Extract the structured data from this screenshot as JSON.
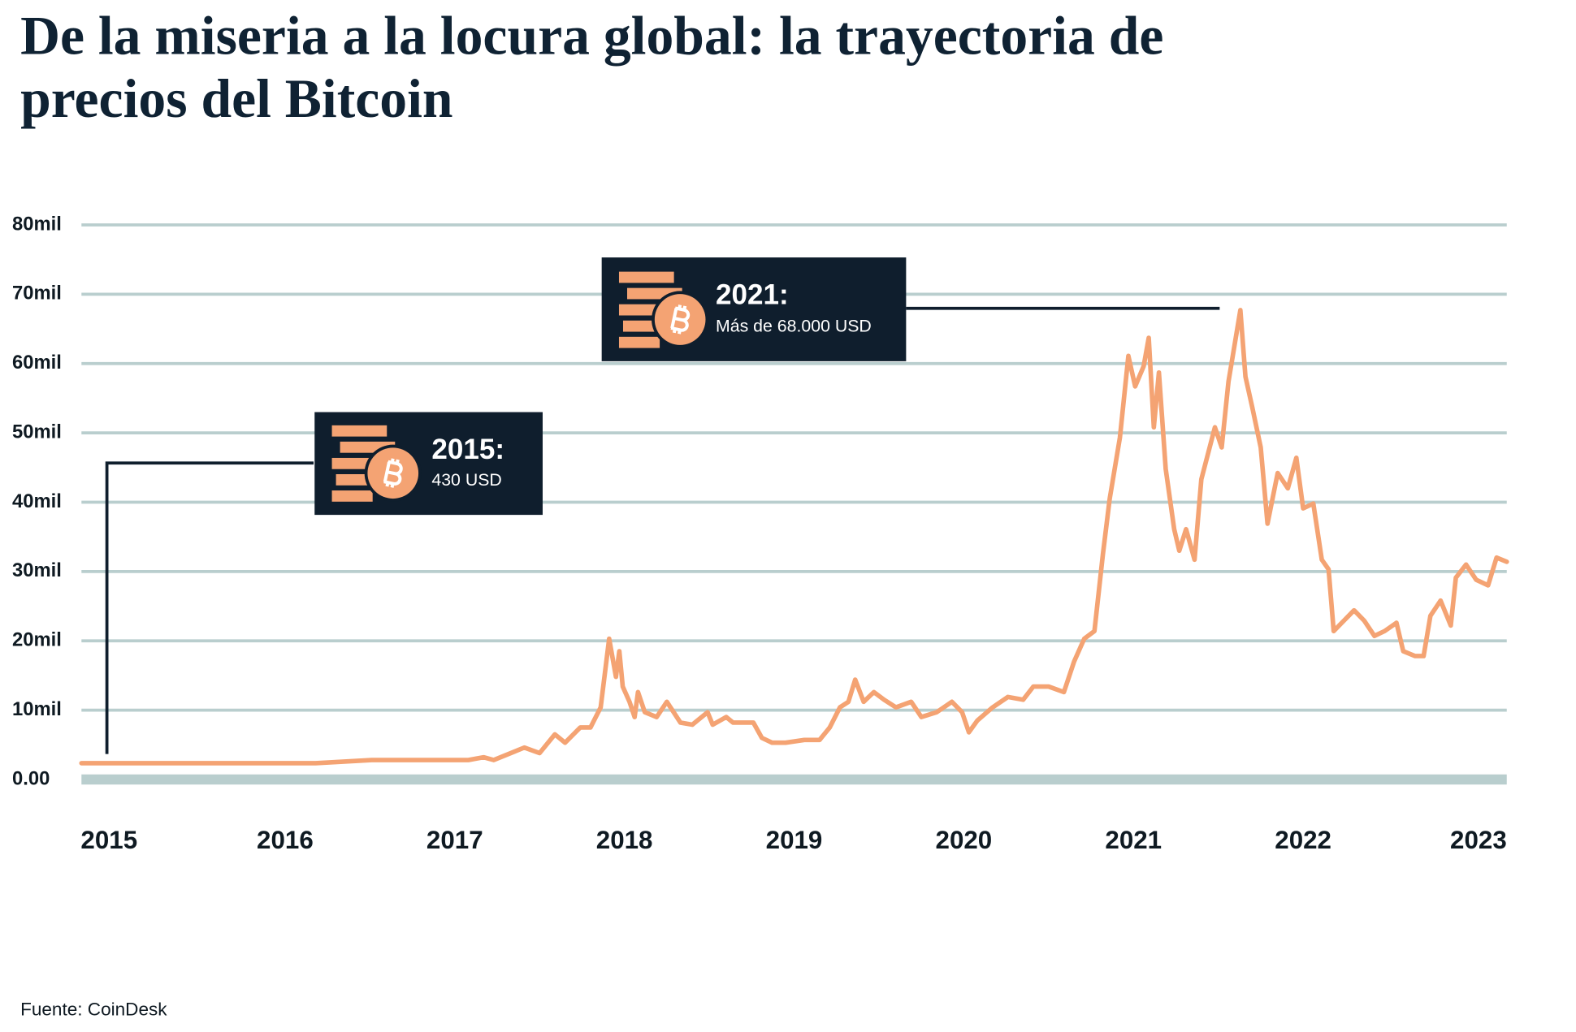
{
  "chart_data": {
    "type": "line",
    "title_lines": [
      "De la miseria a la locura global: la trayectoria de",
      "precios del Bitcoin"
    ],
    "source": "Fuente: CoinDesk",
    "color": "#f4a373",
    "grid": true,
    "xlim": [
      2014.8,
      2023.2
    ],
    "xticks": [
      2015,
      2016,
      2017,
      2018,
      2019,
      2020,
      2021,
      2022,
      2023
    ],
    "ylim": [
      0,
      80000
    ],
    "yticks": [
      {
        "value": 0,
        "label": "0.00"
      },
      {
        "value": 10000,
        "label": "10mil"
      },
      {
        "value": 20000,
        "label": "20mil"
      },
      {
        "value": 30000,
        "label": "30mil"
      },
      {
        "value": 40000,
        "label": "40mil"
      },
      {
        "value": 50000,
        "label": "50mil"
      },
      {
        "value": 60000,
        "label": "60mil"
      },
      {
        "value": 70000,
        "label": "70mil"
      },
      {
        "value": 80000,
        "label": "80mil"
      }
    ],
    "x": [
      2014.8,
      2016.18,
      2016.51,
      2017.08,
      2017.17,
      2017.23,
      2017.41,
      2017.5,
      2017.59,
      2017.65,
      2017.74,
      2017.8,
      2017.86,
      2017.91,
      2017.95,
      2017.97,
      2017.99,
      2018.03,
      2018.06,
      2018.08,
      2018.12,
      2018.19,
      2018.25,
      2018.33,
      2018.4,
      2018.49,
      2018.52,
      2018.6,
      2018.64,
      2018.76,
      2018.81,
      2018.87,
      2018.95,
      2019.06,
      2019.15,
      2019.21,
      2019.27,
      2019.32,
      2019.36,
      2019.41,
      2019.47,
      2019.53,
      2019.6,
      2019.69,
      2019.75,
      2019.84,
      2019.93,
      2019.99,
      2020.03,
      2020.08,
      2020.17,
      2020.26,
      2020.35,
      2020.41,
      2020.5,
      2020.59,
      2020.65,
      2020.71,
      2020.77,
      2020.82,
      2020.86,
      2020.92,
      2020.97,
      2021.01,
      2021.06,
      2021.09,
      2021.12,
      2021.15,
      2021.19,
      2021.24,
      2021.27,
      2021.31,
      2021.36,
      2021.4,
      2021.48,
      2021.52,
      2021.56,
      2021.59,
      2021.63,
      2021.66,
      2021.7,
      2021.75,
      2021.79,
      2021.85,
      2021.91,
      2021.96,
      2022.0,
      2022.06,
      2022.11,
      2022.15,
      2022.18,
      2022.24,
      2022.3,
      2022.36,
      2022.42,
      2022.48,
      2022.55,
      2022.59,
      2022.66,
      2022.71,
      2022.75,
      2022.81,
      2022.87,
      2022.9,
      2022.96,
      2023.02,
      2023.09,
      2023.14,
      2023.2
    ],
    "values": [
      2350,
      2350,
      2800,
      2800,
      3200,
      2800,
      4600,
      3800,
      6500,
      5300,
      7500,
      7500,
      10400,
      20300,
      14800,
      18500,
      13400,
      11200,
      9000,
      12600,
      9700,
      9000,
      11200,
      8200,
      7900,
      9700,
      7900,
      9000,
      8200,
      8200,
      6000,
      5300,
      5300,
      5700,
      5700,
      7500,
      10400,
      11200,
      14400,
      11200,
      12600,
      11500,
      10400,
      11200,
      9000,
      9700,
      11200,
      9700,
      6800,
      8500,
      10400,
      11900,
      11500,
      13400,
      13400,
      12600,
      17000,
      20300,
      21400,
      32500,
      40500,
      49300,
      61100,
      56700,
      59600,
      63700,
      50800,
      58700,
      44800,
      36100,
      33000,
      36100,
      31700,
      43300,
      50800,
      47900,
      57400,
      61800,
      67700,
      58100,
      53700,
      47900,
      36900,
      44200,
      42000,
      46400,
      39100,
      39800,
      31700,
      30300,
      21400,
      22900,
      24400,
      22900,
      20700,
      21400,
      22600,
      18500,
      17800,
      17800,
      23600,
      25800,
      22200,
      29100,
      31000,
      28800,
      28000,
      32000,
      31400
    ],
    "annotations": [
      {
        "label": "2015:",
        "text": "430 USD"
      },
      {
        "label": "2021:",
        "text": "Más de 68.000 USD"
      }
    ]
  }
}
